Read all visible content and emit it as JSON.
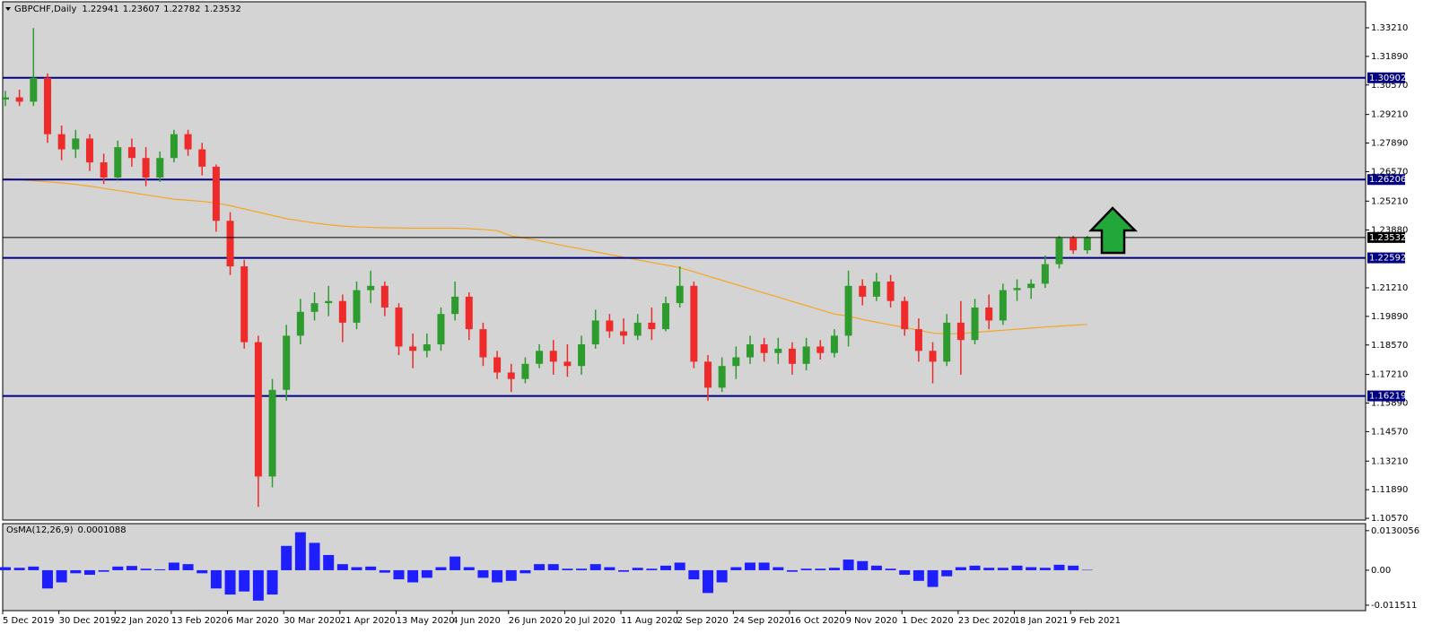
{
  "chart_data": [
    {
      "type": "candlestick",
      "title": "GBPCHF,Daily",
      "categories": [
        "5 Dec 2019",
        null,
        null,
        null,
        "30 Dec 2019",
        null,
        null,
        null,
        "22 Jan 2020",
        null,
        null,
        null,
        "13 Feb 2020",
        null,
        null,
        null,
        "6 Mar 2020",
        null,
        null,
        null,
        "30 Mar 2020",
        null,
        null,
        null,
        "21 Apr 2020",
        null,
        null,
        null,
        "13 May 2020",
        null,
        null,
        null,
        "4 Jun 2020",
        null,
        null,
        null,
        "26 Jun 2020",
        null,
        null,
        null,
        "20 Jul 2020",
        null,
        null,
        null,
        "11 Aug 2020",
        null,
        null,
        null,
        "2 Sep 2020",
        null,
        null,
        null,
        "24 Sep 2020",
        null,
        null,
        null,
        "16 Oct 2020",
        null,
        null,
        null,
        "9 Nov 2020",
        null,
        null,
        null,
        "1 Dec 2020",
        null,
        null,
        null,
        "23 Dec 2020",
        null,
        null,
        null,
        "18 Jan 2021",
        null,
        null,
        null,
        "9 Feb 2021",
        null
      ],
      "ohlc": [
        [
          1.299,
          1.303,
          1.296,
          1.3
        ],
        [
          1.3,
          1.3035,
          1.296,
          1.298
        ],
        [
          1.298,
          1.332,
          1.296,
          1.309
        ],
        [
          1.309,
          1.311,
          1.279,
          1.283
        ],
        [
          1.283,
          1.287,
          1.271,
          1.276
        ],
        [
          1.276,
          1.285,
          1.272,
          1.281
        ],
        [
          1.281,
          1.283,
          1.266,
          1.27
        ],
        [
          1.27,
          1.274,
          1.26,
          1.263
        ],
        [
          1.263,
          1.28,
          1.262,
          1.277
        ],
        [
          1.277,
          1.281,
          1.268,
          1.272
        ],
        [
          1.272,
          1.277,
          1.259,
          1.263
        ],
        [
          1.263,
          1.275,
          1.261,
          1.272
        ],
        [
          1.272,
          1.285,
          1.27,
          1.283
        ],
        [
          1.283,
          1.285,
          1.273,
          1.276
        ],
        [
          1.276,
          1.279,
          1.264,
          1.268
        ],
        [
          1.268,
          1.269,
          1.238,
          1.243
        ],
        [
          1.243,
          1.247,
          1.218,
          1.222
        ],
        [
          1.222,
          1.225,
          1.184,
          1.187
        ],
        [
          1.187,
          1.19,
          1.111,
          1.125
        ],
        [
          1.125,
          1.17,
          1.12,
          1.165
        ],
        [
          1.165,
          1.195,
          1.16,
          1.19
        ],
        [
          1.19,
          1.207,
          1.186,
          1.201
        ],
        [
          1.201,
          1.21,
          1.197,
          1.205
        ],
        [
          1.205,
          1.213,
          1.199,
          1.206
        ],
        [
          1.206,
          1.209,
          1.187,
          1.196
        ],
        [
          1.196,
          1.215,
          1.193,
          1.211
        ],
        [
          1.211,
          1.22,
          1.205,
          1.213
        ],
        [
          1.213,
          1.215,
          1.199,
          1.203
        ],
        [
          1.203,
          1.205,
          1.181,
          1.185
        ],
        [
          1.185,
          1.191,
          1.175,
          1.183
        ],
        [
          1.183,
          1.191,
          1.18,
          1.186
        ],
        [
          1.186,
          1.203,
          1.183,
          1.2
        ],
        [
          1.2,
          1.215,
          1.197,
          1.208
        ],
        [
          1.208,
          1.21,
          1.188,
          1.193
        ],
        [
          1.193,
          1.196,
          1.176,
          1.18
        ],
        [
          1.18,
          1.183,
          1.17,
          1.173
        ],
        [
          1.173,
          1.177,
          1.164,
          1.17
        ],
        [
          1.17,
          1.18,
          1.168,
          1.177
        ],
        [
          1.177,
          1.186,
          1.175,
          1.183
        ],
        [
          1.183,
          1.188,
          1.172,
          1.178
        ],
        [
          1.178,
          1.186,
          1.171,
          1.176
        ],
        [
          1.176,
          1.19,
          1.172,
          1.186
        ],
        [
          1.186,
          1.202,
          1.184,
          1.197
        ],
        [
          1.197,
          1.2,
          1.189,
          1.192
        ],
        [
          1.192,
          1.198,
          1.186,
          1.19
        ],
        [
          1.19,
          1.2,
          1.188,
          1.196
        ],
        [
          1.196,
          1.203,
          1.188,
          1.193
        ],
        [
          1.193,
          1.208,
          1.192,
          1.205
        ],
        [
          1.205,
          1.222,
          1.203,
          1.213
        ],
        [
          1.213,
          1.215,
          1.175,
          1.178
        ],
        [
          1.178,
          1.181,
          1.16,
          1.166
        ],
        [
          1.166,
          1.18,
          1.164,
          1.176
        ],
        [
          1.176,
          1.185,
          1.17,
          1.18
        ],
        [
          1.18,
          1.19,
          1.177,
          1.186
        ],
        [
          1.186,
          1.189,
          1.178,
          1.182
        ],
        [
          1.182,
          1.189,
          1.177,
          1.184
        ],
        [
          1.184,
          1.187,
          1.172,
          1.177
        ],
        [
          1.177,
          1.189,
          1.174,
          1.185
        ],
        [
          1.185,
          1.188,
          1.179,
          1.182
        ],
        [
          1.182,
          1.193,
          1.18,
          1.19
        ],
        [
          1.19,
          1.22,
          1.185,
          1.213
        ],
        [
          1.213,
          1.216,
          1.204,
          1.208
        ],
        [
          1.208,
          1.219,
          1.206,
          1.215
        ],
        [
          1.215,
          1.218,
          1.203,
          1.206
        ],
        [
          1.206,
          1.208,
          1.19,
          1.193
        ],
        [
          1.193,
          1.198,
          1.178,
          1.183
        ],
        [
          1.183,
          1.187,
          1.168,
          1.178
        ],
        [
          1.178,
          1.2,
          1.176,
          1.196
        ],
        [
          1.196,
          1.206,
          1.172,
          1.188
        ],
        [
          1.188,
          1.207,
          1.186,
          1.203
        ],
        [
          1.203,
          1.209,
          1.193,
          1.197
        ],
        [
          1.197,
          1.214,
          1.195,
          1.211
        ],
        [
          1.211,
          1.216,
          1.206,
          1.212
        ],
        [
          1.212,
          1.216,
          1.207,
          1.214
        ],
        [
          1.214,
          1.227,
          1.212,
          1.223
        ],
        [
          1.223,
          1.236,
          1.221,
          1.235
        ],
        [
          1.235,
          1.2361,
          1.2278,
          1.2294
        ],
        [
          1.22941,
          1.23607,
          1.22782,
          1.23532
        ]
      ],
      "up_color": "#2e9b2e",
      "down_color": "#ee2a2a",
      "ma": {
        "color": "#f5a623",
        "values": [
          1.2625,
          1.262,
          1.2615,
          1.261,
          1.2605,
          1.2598,
          1.259,
          1.258,
          1.257,
          1.256,
          1.255,
          1.254,
          1.253,
          1.2525,
          1.252,
          1.2512,
          1.25,
          1.2485,
          1.247,
          1.2455,
          1.244,
          1.243,
          1.242,
          1.2412,
          1.2406,
          1.2402,
          1.24,
          1.2398,
          1.2397,
          1.2396,
          1.2396,
          1.2396,
          1.2396,
          1.2394,
          1.239,
          1.2385,
          1.236,
          1.235,
          1.2338,
          1.2325,
          1.2312,
          1.23,
          1.2287,
          1.2275,
          1.2262,
          1.225,
          1.2238,
          1.2226,
          1.2214,
          1.2195,
          1.2175,
          1.2156,
          1.2136,
          1.2117,
          1.2097,
          1.2078,
          1.2058,
          1.2039,
          1.2019,
          1.2,
          1.199,
          1.1975,
          1.1962,
          1.195,
          1.1938,
          1.1925,
          1.1912,
          1.1908,
          1.191,
          1.1915,
          1.192,
          1.1925,
          1.193,
          1.1935,
          1.194,
          1.1944,
          1.1948,
          1.1952
        ]
      },
      "levels": [
        1.30902,
        1.26206,
        1.22592,
        1.16219
      ],
      "level_color": "#000080",
      "last_price_color": "#000000",
      "ylim": [
        1.1049,
        1.3441
      ],
      "yticks": [
        {
          "value": 1.3321,
          "label": "1.33210"
        },
        {
          "value": 1.3189,
          "label": "1.31890"
        },
        {
          "value": 1.3057,
          "label": "1.30570"
        },
        {
          "value": 1.2921,
          "label": "1.29210"
        },
        {
          "value": 1.2789,
          "label": "1.27890"
        },
        {
          "value": 1.2657,
          "label": "1.26570"
        },
        {
          "value": 1.2521,
          "label": "1.25210"
        },
        {
          "value": 1.2388,
          "label": "1.23880"
        },
        {
          "value": 1.2121,
          "label": "1.21210"
        },
        {
          "value": 1.1989,
          "label": "1.19890"
        },
        {
          "value": 1.1857,
          "label": "1.18570"
        },
        {
          "value": 1.1721,
          "label": "1.17210"
        },
        {
          "value": 1.1589,
          "label": "1.15890"
        },
        {
          "value": 1.1457,
          "label": "1.14570"
        },
        {
          "value": 1.1321,
          "label": "1.13210"
        },
        {
          "value": 1.1189,
          "label": "1.11890"
        },
        {
          "value": 1.1057,
          "label": "1.10570"
        }
      ]
    },
    {
      "type": "histogram",
      "title": "OsMA(12,26,9)",
      "color": "#1e1eff",
      "values": [
        0.001,
        0.0008,
        0.0012,
        -0.006,
        -0.004,
        -0.001,
        -0.0015,
        -0.0005,
        0.0012,
        0.0014,
        0.0005,
        0.0003,
        0.0025,
        0.002,
        -0.001,
        -0.006,
        -0.008,
        -0.007,
        -0.01,
        -0.008,
        0.008,
        0.0125,
        0.009,
        0.005,
        0.002,
        0.001,
        0.0012,
        -0.0008,
        -0.003,
        -0.004,
        -0.0025,
        0.001,
        0.0045,
        0.001,
        -0.0025,
        -0.004,
        -0.0035,
        -0.001,
        0.002,
        0.002,
        0.0005,
        0.0005,
        0.002,
        0.001,
        -0.0005,
        0.0008,
        0.0005,
        0.0015,
        0.0025,
        -0.003,
        -0.0075,
        -0.004,
        0.001,
        0.0025,
        0.0025,
        0.001,
        -0.0005,
        0.0005,
        0.0005,
        0.0008,
        0.0035,
        0.003,
        0.0015,
        0.0005,
        -0.0015,
        -0.0035,
        -0.0055,
        -0.002,
        0.001,
        0.0015,
        0.0008,
        0.0008,
        0.0015,
        0.001,
        0.0008,
        0.0018,
        0.0015,
        0.0001088
      ],
      "ylim": [
        -0.01329,
        0.01532
      ],
      "yticks": [
        0.0130056,
        {
          "value": 0,
          "label": "0.00"
        },
        -0.011511
      ]
    }
  ]
}
